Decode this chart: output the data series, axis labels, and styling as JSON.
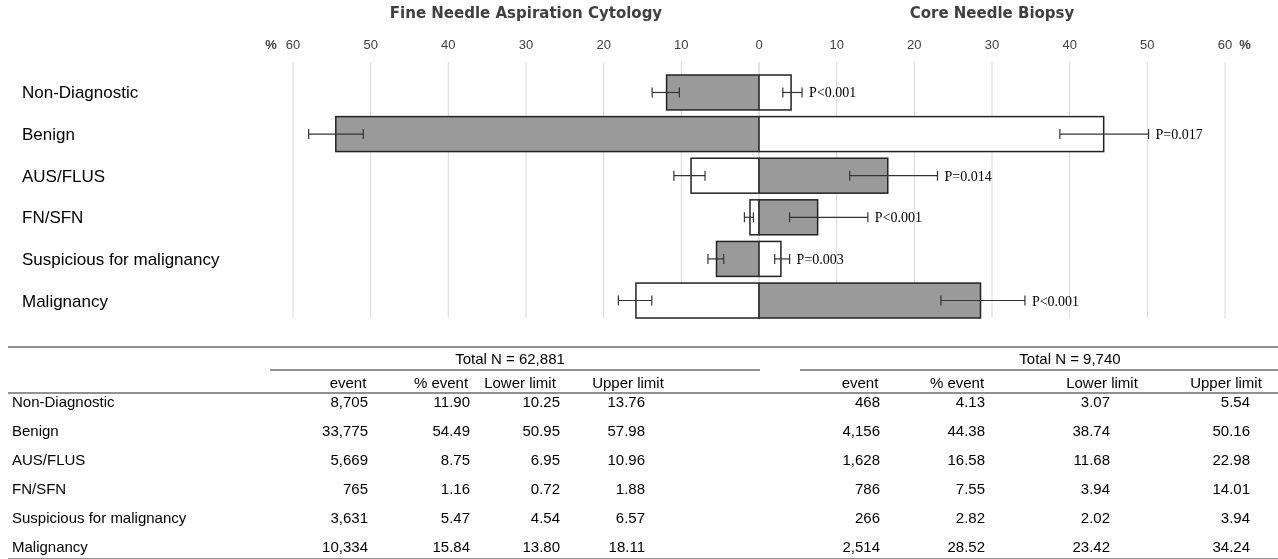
{
  "chart_data": [
    {
      "type": "bar",
      "orientation": "horizontal",
      "title": "Fine Needle Aspiration Cytology",
      "xlabel": "%",
      "categories": [
        "Non-Diagnostic",
        "Benign",
        "AUS/FLUS",
        "FN/SFN",
        "Suspicious for malignancy",
        "Malignancy"
      ],
      "xlim": [
        60,
        0
      ],
      "xticks": [
        60,
        50,
        40,
        30,
        20,
        10,
        0
      ],
      "grid": "x",
      "colors": [
        "#9a9a9a",
        "#9a9a9a",
        "#ffffff",
        "#ffffff",
        "#9a9a9a",
        "#ffffff"
      ],
      "values": [
        11.9,
        54.49,
        8.75,
        1.16,
        5.47,
        15.84
      ],
      "errors": [
        [
          10.25,
          13.76
        ],
        [
          50.95,
          57.98
        ],
        [
          6.95,
          10.96
        ],
        [
          0.72,
          1.88
        ],
        [
          4.54,
          6.57
        ],
        [
          13.8,
          18.11
        ]
      ],
      "annotations": [
        "Total N = 62,881",
        "event",
        "% event",
        "Lower limit",
        "Upper limit",
        "8,705",
        "11.90",
        "10.25",
        "13.76",
        "33,775",
        "54.49",
        "50.95",
        "57.98",
        "5,669",
        "8.75",
        "6.95",
        "10.96",
        "765",
        "1.16",
        "0.72",
        "1.88",
        "3,631",
        "5.47",
        "4.54",
        "6.57",
        "10,334",
        "15.84",
        "13.80",
        "18.11"
      ]
    },
    {
      "type": "bar",
      "orientation": "horizontal",
      "title": "Core Needle Biopsy",
      "xlabel": "%",
      "categories": [
        null,
        null,
        null,
        null,
        null,
        null
      ],
      "xlim": [
        0,
        60
      ],
      "xticks": [
        {
          "value": 0,
          "label": null
        },
        10,
        20,
        30,
        40,
        50,
        60
      ],
      "grid": "x",
      "colors": [
        "#ffffff",
        "#ffffff",
        "#9a9a9a",
        "#9a9a9a",
        "#ffffff",
        "#9a9a9a"
      ],
      "values": [
        4.13,
        44.38,
        16.58,
        7.55,
        2.82,
        28.52
      ],
      "errors": [
        [
          3.07,
          5.54
        ],
        [
          38.74,
          50.16
        ],
        [
          11.68,
          22.98
        ],
        [
          3.94,
          14.01
        ],
        [
          2.02,
          3.94
        ],
        [
          23.42,
          34.24
        ]
      ],
      "annotations": [
        {
          "text": "P<0.001",
          "x": 5.54
        },
        {
          "text": "P=0.017",
          "x": 50.16
        },
        {
          "text": "P=0.014",
          "x": 22.98
        },
        {
          "text": "P<0.001",
          "x": 14.01
        },
        {
          "text": "P=0.003",
          "x": 3.94
        },
        {
          "text": "P<0.001",
          "x": 34.24
        },
        "Total N = 9,740",
        "event",
        "% event",
        "Lower limit",
        "Upper limit",
        "468",
        "4.13",
        "3.07",
        "5.54",
        "4,156",
        "44.38",
        "38.74",
        "50.16",
        "1,628",
        "16.58",
        "11.68",
        "22.98",
        "786",
        "7.55",
        "3.94",
        "14.01",
        "266",
        "2.82",
        "2.02",
        "3.94",
        "2,514",
        "28.52",
        "23.42",
        "34.24"
      ]
    }
  ]
}
